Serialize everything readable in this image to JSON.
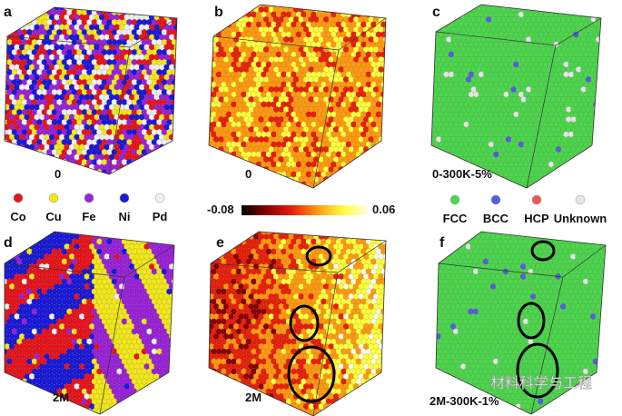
{
  "panels": [
    {
      "letter": "a",
      "caption": "0",
      "scheme": "elements"
    },
    {
      "letter": "b",
      "caption": "0",
      "scheme": "strain0"
    },
    {
      "letter": "c",
      "caption": "0-300K-5%",
      "scheme": "struct5"
    },
    {
      "letter": "d",
      "caption": "2M",
      "scheme": "segregated"
    },
    {
      "letter": "e",
      "caption": "2M",
      "scheme": "strain2M"
    },
    {
      "letter": "f",
      "caption": "2M-300K-1%",
      "scheme": "struct1"
    }
  ],
  "element_legend": [
    {
      "label": "Co",
      "color": "#e8141c"
    },
    {
      "label": "Cu",
      "color": "#f2e81a"
    },
    {
      "label": "Fe",
      "color": "#9a22d8"
    },
    {
      "label": "Ni",
      "color": "#1a1ad8"
    },
    {
      "label": "Pd",
      "color": "#f0f0f0"
    }
  ],
  "colorbar": {
    "min": "-0.08",
    "max": "0.06",
    "colors": [
      "#000000",
      "#8a0000",
      "#e8200a",
      "#ff9a10",
      "#ffff40",
      "#ffffe8"
    ]
  },
  "structure_legend": [
    {
      "label": "FCC",
      "color": "#4cd64c"
    },
    {
      "label": "BCC",
      "color": "#5a5ae6"
    },
    {
      "label": "HCP",
      "color": "#e85a5a"
    },
    {
      "label": "Unknown",
      "color": "#e4e4e4"
    }
  ],
  "watermark": "材料科学与工程"
}
